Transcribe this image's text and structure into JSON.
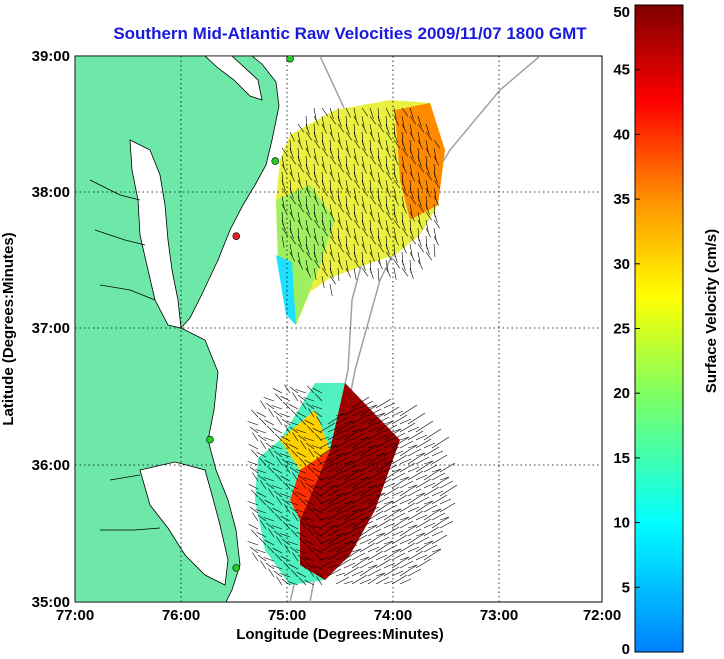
{
  "title": "Southern Mid-Atlantic Raw Velocities 2009/11/07 1800 GMT",
  "axes": {
    "xlabel": "Longitude (Degrees:Minutes)",
    "ylabel": "Latitude (Degrees:Minutes)",
    "xticks": [
      "77:00",
      "76:00",
      "75:00",
      "74:00",
      "73:00",
      "72:00"
    ],
    "yticks": [
      "39:00",
      "38:00",
      "37:00",
      "36:00",
      "35:00"
    ],
    "xrange": [
      -77,
      -72
    ],
    "yrange": [
      35,
      39
    ]
  },
  "colorbar": {
    "label": "Surface Velocity (cm/s)",
    "ticks": [
      "50",
      "45",
      "40",
      "35",
      "30",
      "25",
      "20",
      "15",
      "10",
      "5",
      "0"
    ],
    "range": [
      0,
      50
    ],
    "colormap": "jet"
  },
  "colors": {
    "land": "#6ee8a8",
    "coast": "#000000",
    "isobath": "#a0a0a0",
    "title": "#1a1adc",
    "station_active": "#22cc22",
    "station_inactive": "#dd2222"
  },
  "stations": [
    {
      "lon": -74.96,
      "lat": 38.98,
      "status": "active"
    },
    {
      "lon": -75.1,
      "lat": 38.23,
      "status": "active"
    },
    {
      "lon": -75.47,
      "lat": 37.68,
      "status": "inactive"
    },
    {
      "lon": -75.72,
      "lat": 36.19,
      "status": "active"
    },
    {
      "lon": -75.47,
      "lat": 35.25,
      "status": "active"
    }
  ]
}
